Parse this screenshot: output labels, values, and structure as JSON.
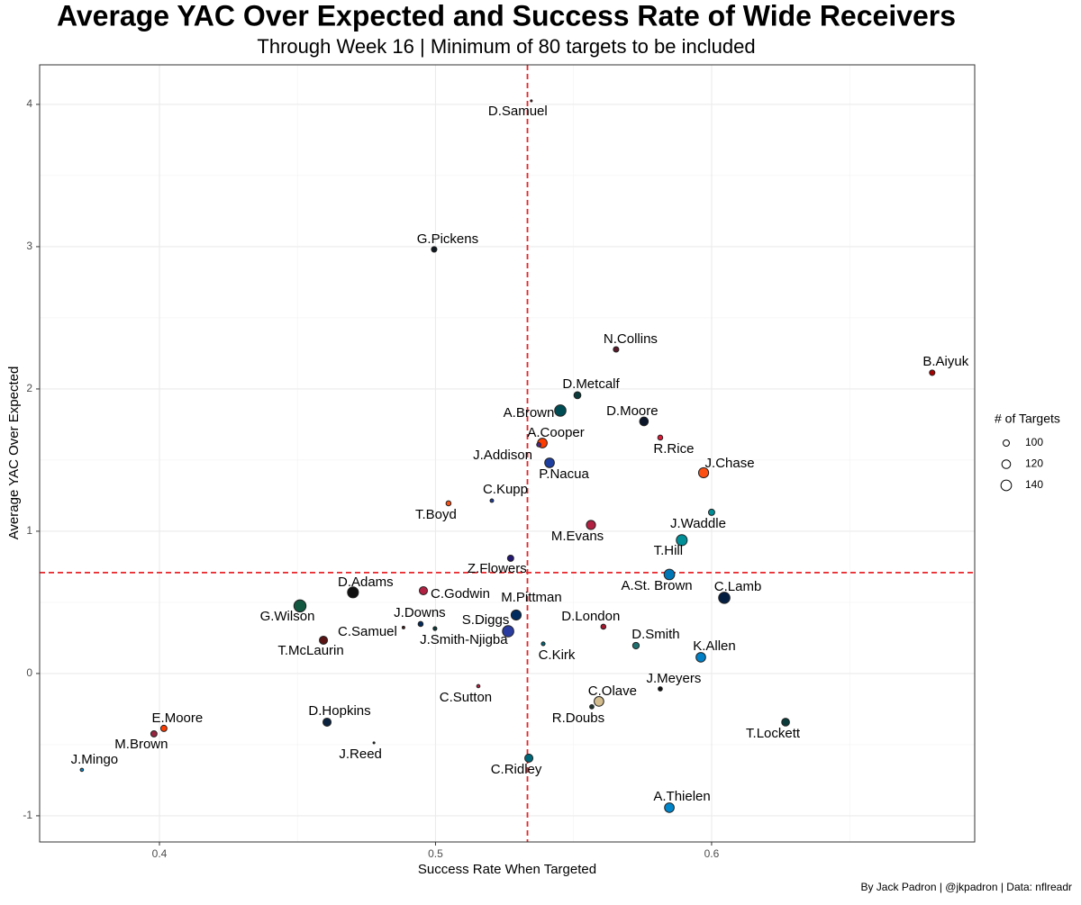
{
  "chart_data": {
    "type": "scatter",
    "title": "Average YAC Over Expected and Success Rate of Wide Receivers",
    "subtitle": "Through Week 16 | Minimum of 80 targets to be included",
    "x_label": "Success Rate When Targeted",
    "y_label": "Average YAC Over Expected",
    "caption": "By Jack Padron | @jkpadron | Data: nflreadr",
    "xlim": [
      0.3566,
      0.6953
    ],
    "ylim": [
      -1.184,
      4.278
    ],
    "xticks": [
      0.4,
      0.5,
      0.6
    ],
    "yticks": [
      -1,
      0,
      1,
      2,
      3,
      4
    ],
    "grid": true,
    "vline": 0.5333,
    "hline": 0.709,
    "ref_color": "#e8262b",
    "size_legend": {
      "title": "# of Targets",
      "values": [
        100,
        120,
        140
      ]
    },
    "labels": [
      "D.Samuel",
      "G.Pickens",
      "N.Collins",
      "B.Aiyuk",
      "D.Metcalf",
      "A.Brown",
      "D.Moore",
      "R.Rice",
      "A.Cooper",
      "J.Addison",
      "P.Nacua",
      "J.Chase",
      "T.Boyd",
      "C.Kupp",
      "J.Waddle",
      "M.Evans",
      "T.Hill",
      "Z.Flowers",
      "A.St. Brown",
      "C.Lamb",
      "D.Adams",
      "G.Wilson",
      "C.Godwin",
      "M.Pittman",
      "S.Diggs",
      "D.London",
      "T.McLaurin",
      "C.Samuel",
      "J.Downs",
      "J.Smith-Njigba",
      "C.Kirk",
      "D.Smith",
      "K.Allen",
      "J.Meyers",
      "C.Sutton",
      "C.Olave",
      "R.Doubs",
      "T.Lockett",
      "E.Moore",
      "M.Brown",
      "D.Hopkins",
      "J.Reed",
      "J.Mingo",
      "C.Ridley",
      "A.Thielen"
    ],
    "x": [
      0.5347,
      0.4995,
      0.5654,
      0.6799,
      0.5514,
      0.5452,
      0.5755,
      0.5814,
      0.5387,
      0.5374,
      0.5413,
      0.5971,
      0.5047,
      0.5204,
      0.6,
      0.5563,
      0.5892,
      0.5272,
      0.5847,
      0.6046,
      0.4701,
      0.4509,
      0.4956,
      0.5292,
      0.5263,
      0.5608,
      0.4594,
      0.4884,
      0.4946,
      0.4998,
      0.539,
      0.5726,
      0.5961,
      0.5814,
      0.5155,
      0.5592,
      0.5566,
      0.6268,
      0.4016,
      0.398,
      0.4607,
      0.4777,
      0.3719,
      0.5338,
      0.5847
    ],
    "y": [
      4.025,
      2.981,
      2.278,
      2.114,
      1.956,
      1.848,
      1.772,
      1.658,
      1.62,
      1.608,
      1.481,
      1.411,
      1.196,
      1.215,
      1.133,
      1.044,
      0.937,
      0.81,
      0.696,
      0.532,
      0.57,
      0.475,
      0.582,
      0.411,
      0.297,
      0.329,
      0.234,
      0.323,
      0.348,
      0.316,
      0.209,
      0.196,
      0.114,
      -0.108,
      -0.089,
      -0.196,
      -0.234,
      -0.342,
      -0.386,
      -0.424,
      -0.342,
      -0.487,
      -0.677,
      -0.595,
      -0.943
    ],
    "size": [
      80,
      95,
      95,
      95,
      105,
      150,
      120,
      92,
      130,
      88,
      130,
      135,
      92,
      85,
      100,
      125,
      145,
      100,
      140,
      150,
      145,
      160,
      115,
      135,
      150,
      92,
      115,
      82,
      92,
      86,
      86,
      102,
      130,
      88,
      84,
      130,
      88,
      112,
      100,
      100,
      115,
      80,
      84,
      115,
      130
    ],
    "colors": [
      "#AA0000",
      "#101820",
      "#5a1a2a",
      "#AA0000",
      "#0b3b3b",
      "#004C54",
      "#0B162A",
      "#E31837",
      "#FF3C00",
      "#4F2683",
      "#1f3fa0",
      "#FB4F14",
      "#FB4F14",
      "#1f3fa0",
      "#008E97",
      "#B22142",
      "#008E97",
      "#241773",
      "#0076B6",
      "#041E42",
      "#111111",
      "#125740",
      "#B22142",
      "#002C5F",
      "#2a3ca0",
      "#A71930",
      "#5A1414",
      "#5A1414",
      "#002C5F",
      "#0b3b3b",
      "#006778",
      "#1f6f6f",
      "#0080C6",
      "#111111",
      "#B22142",
      "#D3BC8D",
      "#203731",
      "#0b3b3b",
      "#FF3C00",
      "#97233F",
      "#0C2340",
      "#203731",
      "#0085CA",
      "#006778",
      "#0085CA"
    ]
  }
}
